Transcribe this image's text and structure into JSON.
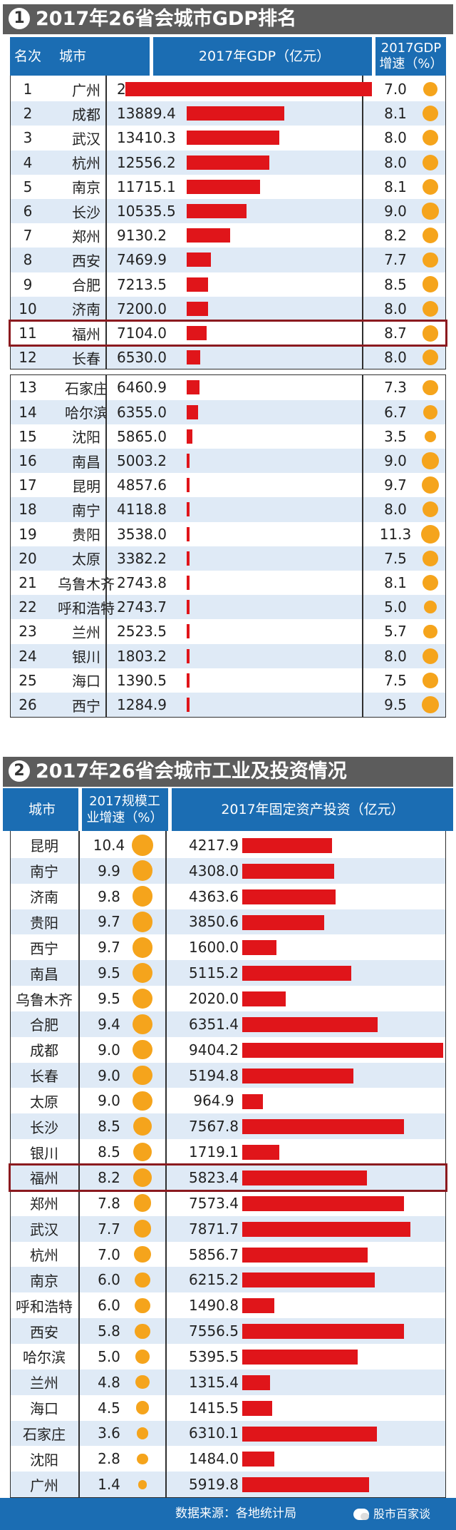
{
  "section1": {
    "number": "1",
    "title": "2017年26省会城市GDP排名",
    "headers": {
      "rank": "名次",
      "city": "城市",
      "gdp": "2017年GDP（亿元）",
      "growth": "2017GDP\n增速（%）"
    }
  },
  "section2": {
    "number": "2",
    "title": "2017年26省会城市工业及投资情况",
    "headers": {
      "city": "城市",
      "industry": "2017规模工\n业增速（%）",
      "investment": "2017年固定资产投资（亿元）"
    }
  },
  "footer": {
    "source": "数据来源：各地统计局",
    "watermark": "股市百家谈"
  },
  "colors": {
    "header_blue": "#1b6db3",
    "bar_red": "#e0151a",
    "dot_orange": "#f5a41c",
    "stripe": "#dfeaf6",
    "highlight": "#8b1a1f",
    "title_bg": "#5c5c5c"
  },
  "chart_data": [
    {
      "type": "table",
      "title": "2017年26省会城市GDP排名",
      "columns": [
        "名次",
        "城市",
        "2017年GDP（亿元）",
        "2017GDP增速（%）"
      ],
      "highlighted_city": "福州",
      "rows": [
        {
          "rank": "1",
          "city": "广州",
          "gdp": "21503.2",
          "growth": "7.0"
        },
        {
          "rank": "2",
          "city": "成都",
          "gdp": "13889.4",
          "growth": "8.1"
        },
        {
          "rank": "3",
          "city": "武汉",
          "gdp": "13410.3",
          "growth": "8.0"
        },
        {
          "rank": "4",
          "city": "杭州",
          "gdp": "12556.2",
          "growth": "8.0"
        },
        {
          "rank": "5",
          "city": "南京",
          "gdp": "11715.1",
          "growth": "8.1"
        },
        {
          "rank": "6",
          "city": "长沙",
          "gdp": "10535.5",
          "growth": "9.0"
        },
        {
          "rank": "7",
          "city": "郑州",
          "gdp": "9130.2",
          "growth": "8.2"
        },
        {
          "rank": "8",
          "city": "西安",
          "gdp": "7469.9",
          "growth": "7.7"
        },
        {
          "rank": "9",
          "city": "合肥",
          "gdp": "7213.5",
          "growth": "8.5"
        },
        {
          "rank": "10",
          "city": "济南",
          "gdp": "7200.0",
          "growth": "8.0"
        },
        {
          "rank": "11",
          "city": "福州",
          "gdp": "7104.0",
          "growth": "8.7"
        },
        {
          "rank": "12",
          "city": "长春",
          "gdp": "6530.0",
          "growth": "8.0"
        },
        {
          "rank": "13",
          "city": "石家庄",
          "gdp": "6460.9",
          "growth": "7.3"
        },
        {
          "rank": "14",
          "city": "哈尔滨",
          "gdp": "6355.0",
          "growth": "6.7"
        },
        {
          "rank": "15",
          "city": "沈阳",
          "gdp": "5865.0",
          "growth": "3.5"
        },
        {
          "rank": "16",
          "city": "南昌",
          "gdp": "5003.2",
          "growth": "9.0"
        },
        {
          "rank": "17",
          "city": "昆明",
          "gdp": "4857.6",
          "growth": "9.7"
        },
        {
          "rank": "18",
          "city": "南宁",
          "gdp": "4118.8",
          "growth": "8.0"
        },
        {
          "rank": "19",
          "city": "贵阳",
          "gdp": "3538.0",
          "growth": "11.3"
        },
        {
          "rank": "20",
          "city": "太原",
          "gdp": "3382.2",
          "growth": "7.5"
        },
        {
          "rank": "21",
          "city": "乌鲁木齐",
          "gdp": "2743.8",
          "growth": "8.1"
        },
        {
          "rank": "22",
          "city": "呼和浩特",
          "gdp": "2743.7",
          "growth": "5.0"
        },
        {
          "rank": "23",
          "city": "兰州",
          "gdp": "2523.5",
          "growth": "5.7"
        },
        {
          "rank": "24",
          "city": "银川",
          "gdp": "1803.2",
          "growth": "8.0"
        },
        {
          "rank": "25",
          "city": "海口",
          "gdp": "1390.5",
          "growth": "7.5"
        },
        {
          "rank": "26",
          "city": "西宁",
          "gdp": "1284.9",
          "growth": "9.5"
        }
      ]
    },
    {
      "type": "table",
      "title": "2017年26省会城市工业及投资情况",
      "columns": [
        "城市",
        "2017规模工业增速（%）",
        "2017年固定资产投资（亿元）"
      ],
      "highlighted_city": "福州",
      "rows": [
        {
          "city": "昆明",
          "industry": "10.4",
          "investment": "4217.9"
        },
        {
          "city": "南宁",
          "industry": "9.9",
          "investment": "4308.0"
        },
        {
          "city": "济南",
          "industry": "9.8",
          "investment": "4363.6"
        },
        {
          "city": "贵阳",
          "industry": "9.7",
          "investment": "3850.6"
        },
        {
          "city": "西宁",
          "industry": "9.7",
          "investment": "1600.0"
        },
        {
          "city": "南昌",
          "industry": "9.5",
          "investment": "5115.2"
        },
        {
          "city": "乌鲁木齐",
          "industry": "9.5",
          "investment": "2020.0"
        },
        {
          "city": "合肥",
          "industry": "9.4",
          "investment": "6351.4"
        },
        {
          "city": "成都",
          "industry": "9.0",
          "investment": "9404.2"
        },
        {
          "city": "长春",
          "industry": "9.0",
          "investment": "5194.8"
        },
        {
          "city": "太原",
          "industry": "9.0",
          "investment": "964.9"
        },
        {
          "city": "长沙",
          "industry": "8.5",
          "investment": "7567.8"
        },
        {
          "city": "银川",
          "industry": "8.5",
          "investment": "1719.1"
        },
        {
          "city": "福州",
          "industry": "8.2",
          "investment": "5823.4"
        },
        {
          "city": "郑州",
          "industry": "7.8",
          "investment": "7573.4"
        },
        {
          "city": "武汉",
          "industry": "7.7",
          "investment": "7871.7"
        },
        {
          "city": "杭州",
          "industry": "7.0",
          "investment": "5856.7"
        },
        {
          "city": "南京",
          "industry": "6.0",
          "investment": "6215.2"
        },
        {
          "city": "呼和浩特",
          "industry": "6.0",
          "investment": "1490.8"
        },
        {
          "city": "西安",
          "industry": "5.8",
          "investment": "7556.5"
        },
        {
          "city": "哈尔滨",
          "industry": "5.0",
          "investment": "5395.5"
        },
        {
          "city": "兰州",
          "industry": "4.8",
          "investment": "1315.4"
        },
        {
          "city": "海口",
          "industry": "4.5",
          "investment": "1415.5"
        },
        {
          "city": "石家庄",
          "industry": "3.6",
          "investment": "6310.1"
        },
        {
          "city": "沈阳",
          "industry": "2.8",
          "investment": "1484.0"
        },
        {
          "city": "广州",
          "industry": "1.4",
          "investment": "5919.8"
        }
      ]
    }
  ]
}
